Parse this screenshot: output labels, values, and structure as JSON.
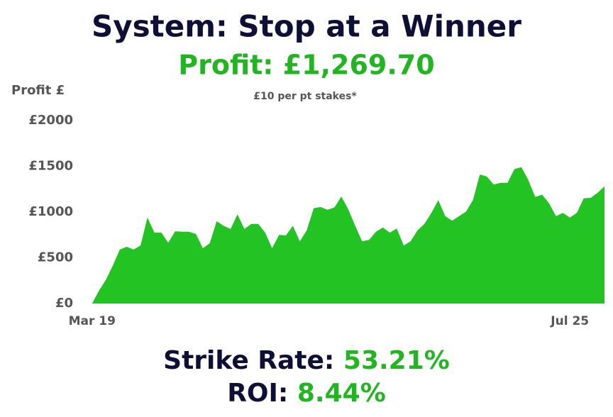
{
  "chart_data": {
    "type": "area",
    "title": "System: Stop at a Winner",
    "subtitle": "Profit: £1,269.70",
    "note": "£10 per pt stakes*",
    "y_label": "Profit £",
    "color": "#22c322",
    "grid": false,
    "categories": [
      null,
      "Mar 19",
      null,
      null,
      null,
      null,
      null,
      null,
      null,
      null,
      null,
      null,
      null,
      null,
      null,
      null,
      null,
      null,
      null,
      null,
      null,
      null,
      null,
      null,
      null,
      null,
      null,
      null,
      null,
      null,
      null,
      null,
      null,
      null,
      null,
      null,
      null,
      null,
      null,
      null,
      null,
      null,
      null,
      null,
      null,
      null,
      null,
      null,
      null,
      null,
      null,
      null,
      null,
      null,
      null,
      null,
      null,
      null,
      null,
      null,
      null,
      null,
      null,
      null,
      null,
      null,
      null,
      null,
      null,
      null,
      "Jul 25",
      null,
      null,
      null,
      null,
      null
    ],
    "values": [
      0,
      0,
      140,
      260,
      415,
      590,
      620,
      590,
      635,
      940,
      775,
      775,
      665,
      790,
      785,
      785,
      760,
      605,
      660,
      900,
      850,
      815,
      975,
      815,
      870,
      870,
      775,
      605,
      750,
      745,
      850,
      680,
      800,
      1040,
      1055,
      1025,
      1050,
      1170,
      1030,
      850,
      680,
      695,
      785,
      830,
      775,
      820,
      635,
      680,
      800,
      870,
      990,
      1130,
      955,
      905,
      955,
      1005,
      1130,
      1410,
      1390,
      1300,
      1320,
      1320,
      1470,
      1490,
      1350,
      1165,
      1190,
      1095,
      955,
      990,
      940,
      990,
      1150,
      1155,
      1210,
      1280
    ],
    "ylim": [
      0,
      2000
    ],
    "yticks": [
      {
        "value": 0,
        "label": "£0"
      },
      {
        "value": 500,
        "label": "£500"
      },
      {
        "value": 1000,
        "label": "£1000"
      },
      {
        "value": 1500,
        "label": "£1500"
      },
      {
        "value": 2000,
        "label": "£2000"
      }
    ],
    "stats": [
      {
        "label": "Strike Rate:",
        "value": "53.21%"
      },
      {
        "label": "ROI:",
        "value": "8.44%"
      }
    ]
  }
}
